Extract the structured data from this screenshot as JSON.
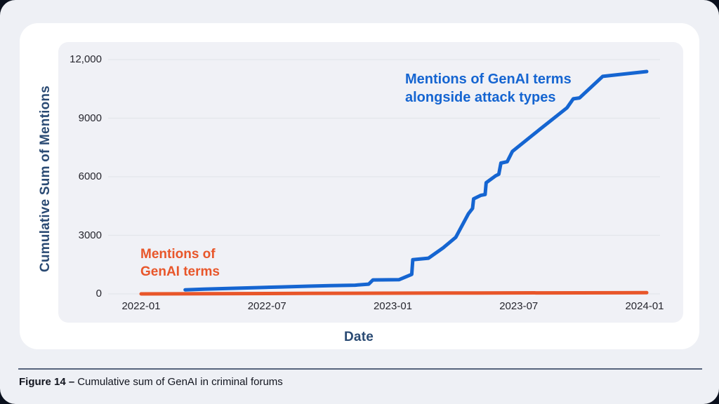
{
  "figure": {
    "caption_label": "Figure 14 –",
    "caption_text": "Cumulative sum of GenAI in criminal forums"
  },
  "chart": {
    "y_axis_title": "Cumulative Sum of Mentions",
    "x_axis_title": "Date",
    "annotations": {
      "blue": {
        "line1": "Mentions of GenAI terms",
        "line2": "alongside attack types"
      },
      "orange": {
        "line1": "Mentions of",
        "line2": "GenAI terms"
      }
    }
  },
  "chart_data": {
    "type": "line",
    "title": "",
    "xlabel": "Date",
    "ylabel": "Cumulative Sum of Mentions",
    "x_unit": "months since 2022-01 (0 = 2022-01)",
    "x_ticks": [
      0,
      6,
      12,
      18,
      24
    ],
    "x_tick_labels": [
      "2022-01",
      "2022-07",
      "2023-01",
      "2023-07",
      "2024-01"
    ],
    "y_ticks": [
      0,
      3000,
      6000,
      9000,
      12000
    ],
    "y_tick_labels": [
      "0",
      "3000",
      "6000",
      "9000",
      "12,000"
    ],
    "ylim": [
      0,
      12900
    ],
    "grid": "horizontal",
    "grid_color": "#e3e5eb",
    "legend": "inline-annotations",
    "series": [
      {
        "name": "Mentions of GenAI terms alongside attack types",
        "color": "#1565d1",
        "stroke_width": 5,
        "points": [
          [
            2.1,
            210
          ],
          [
            3,
            245
          ],
          [
            4.3,
            285
          ],
          [
            5.5,
            320
          ],
          [
            6.7,
            355
          ],
          [
            8,
            395
          ],
          [
            9,
            425
          ],
          [
            10.2,
            445
          ],
          [
            10.85,
            500
          ],
          [
            11.05,
            715
          ],
          [
            12.3,
            730
          ],
          [
            12.9,
            1000
          ],
          [
            12.95,
            1755
          ],
          [
            13.7,
            1830
          ],
          [
            14.4,
            2360
          ],
          [
            15,
            2900
          ],
          [
            15.6,
            4100
          ],
          [
            15.8,
            4380
          ],
          [
            15.85,
            4870
          ],
          [
            16.2,
            5050
          ],
          [
            16.4,
            5090
          ],
          [
            16.45,
            5695
          ],
          [
            16.9,
            6050
          ],
          [
            17.05,
            6130
          ],
          [
            17.15,
            6700
          ],
          [
            17.45,
            6770
          ],
          [
            17.7,
            7300
          ],
          [
            19,
            8420
          ],
          [
            20.3,
            9530
          ],
          [
            20.6,
            9990
          ],
          [
            20.9,
            10040
          ],
          [
            22,
            11140
          ],
          [
            24.1,
            11390
          ]
        ]
      },
      {
        "name": "Mentions of GenAI terms",
        "color": "#e8562a",
        "stroke_width": 5,
        "points": [
          [
            0,
            0
          ],
          [
            8,
            25
          ],
          [
            16,
            45
          ],
          [
            24.1,
            60
          ]
        ]
      }
    ]
  },
  "colors": {
    "outer_background": "#0a101d",
    "page_background": "#eef0f5",
    "card_background": "#ffffff",
    "plot_background": "#f0f1f6",
    "axis_title_navy": "#2a4a73",
    "tick_text": "#26262e",
    "separator": "#57647d"
  }
}
